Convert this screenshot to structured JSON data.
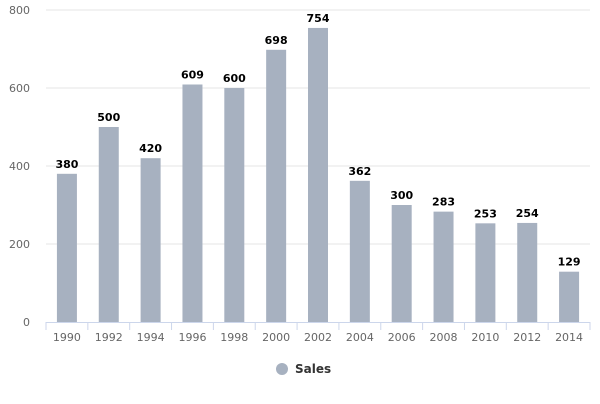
{
  "chart_data": {
    "type": "bar",
    "title": "",
    "xlabel": "",
    "ylabel": "",
    "categories": [
      "1990",
      "1992",
      "1994",
      "1996",
      "1998",
      "2000",
      "2002",
      "2004",
      "2006",
      "2008",
      "2010",
      "2012",
      "2014"
    ],
    "series": [
      {
        "name": "Sales",
        "color": "#a7b1c0",
        "values": [
          380,
          500,
          420,
          609,
          600,
          698,
          754,
          362,
          300,
          283,
          253,
          254,
          129
        ]
      }
    ],
    "ylim": [
      0,
      800
    ],
    "yticks": [
      0,
      200,
      400,
      600,
      800
    ],
    "grid": true,
    "legend": "bottom-center",
    "data_labels": true
  }
}
